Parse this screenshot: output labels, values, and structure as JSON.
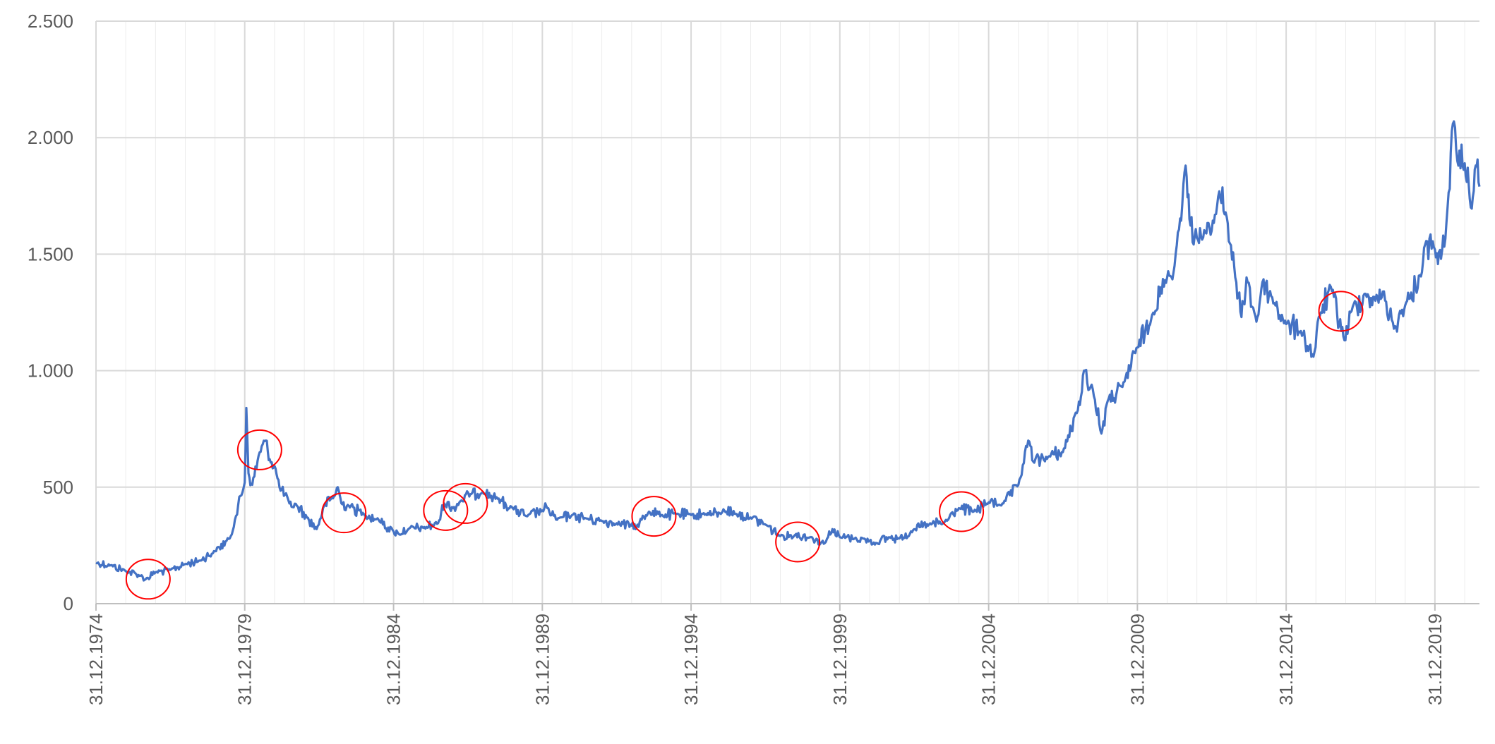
{
  "chart_data": {
    "type": "line",
    "title": "",
    "xlabel": "",
    "ylabel": "",
    "ylim": [
      0,
      2500
    ],
    "xlim": [
      "1974-12-31",
      "2021-06-30"
    ],
    "y_ticks": [
      {
        "value": 0,
        "label": "0"
      },
      {
        "value": 500,
        "label": "500"
      },
      {
        "value": 1000,
        "label": "1.000"
      },
      {
        "value": 1500,
        "label": "1.500"
      },
      {
        "value": 2000,
        "label": "2.000"
      },
      {
        "value": 2500,
        "label": "2.500"
      }
    ],
    "x_ticks": [
      {
        "date": "1974-12-31",
        "label": "31.12.1974"
      },
      {
        "date": "1979-12-31",
        "label": "31.12.1979"
      },
      {
        "date": "1984-12-31",
        "label": "31.12.1984"
      },
      {
        "date": "1989-12-31",
        "label": "31.12.1989"
      },
      {
        "date": "1994-12-31",
        "label": "31.12.1994"
      },
      {
        "date": "1999-12-31",
        "label": "31.12.1999"
      },
      {
        "date": "2004-12-31",
        "label": "31.12.2004"
      },
      {
        "date": "2009-12-31",
        "label": "31.12.2009"
      },
      {
        "date": "2014-12-31",
        "label": "31.12.2014"
      },
      {
        "date": "2019-12-31",
        "label": "31.12.2019"
      }
    ],
    "grid": {
      "major": true,
      "minor_x": true
    },
    "legend": "none",
    "series": [
      {
        "color": "#4472C4",
        "points": [
          [
            "1974-12-31",
            175
          ],
          [
            "1975-06-30",
            165
          ],
          [
            "1976-01-01",
            140
          ],
          [
            "1976-06-30",
            120
          ],
          [
            "1976-09-01",
            105
          ],
          [
            "1977-01-01",
            135
          ],
          [
            "1977-06-30",
            145
          ],
          [
            "1978-01-01",
            170
          ],
          [
            "1978-06-30",
            185
          ],
          [
            "1978-12-31",
            225
          ],
          [
            "1979-06-30",
            280
          ],
          [
            "1979-09-01",
            360
          ],
          [
            "1979-12-31",
            520
          ],
          [
            "1980-01-20",
            840
          ],
          [
            "1980-02-15",
            560
          ],
          [
            "1980-04-01",
            510
          ],
          [
            "1980-07-01",
            650
          ],
          [
            "1980-09-15",
            700
          ],
          [
            "1980-11-01",
            620
          ],
          [
            "1981-01-01",
            590
          ],
          [
            "1981-03-01",
            500
          ],
          [
            "1981-07-01",
            430
          ],
          [
            "1981-10-01",
            420
          ],
          [
            "1982-02-01",
            370
          ],
          [
            "1982-06-01",
            320
          ],
          [
            "1982-09-01",
            420
          ],
          [
            "1982-12-31",
            460
          ],
          [
            "1983-02-15",
            500
          ],
          [
            "1983-04-01",
            430
          ],
          [
            "1983-07-01",
            420
          ],
          [
            "1983-12-31",
            385
          ],
          [
            "1984-06-30",
            360
          ],
          [
            "1984-12-31",
            310
          ],
          [
            "1985-03-01",
            300
          ],
          [
            "1985-06-30",
            320
          ],
          [
            "1985-12-31",
            325
          ],
          [
            "1986-06-30",
            345
          ],
          [
            "1986-09-15",
            430
          ],
          [
            "1986-12-31",
            410
          ],
          [
            "1987-04-01",
            440
          ],
          [
            "1987-08-01",
            470
          ],
          [
            "1987-12-31",
            480
          ],
          [
            "1988-06-30",
            450
          ],
          [
            "1988-12-31",
            410
          ],
          [
            "1989-06-30",
            375
          ],
          [
            "1989-12-31",
            400
          ],
          [
            "1990-03-01",
            410
          ],
          [
            "1990-06-30",
            360
          ],
          [
            "1990-12-31",
            380
          ],
          [
            "1991-06-30",
            365
          ],
          [
            "1991-12-31",
            355
          ],
          [
            "1992-06-30",
            345
          ],
          [
            "1992-12-31",
            335
          ],
          [
            "1993-03-01",
            330
          ],
          [
            "1993-08-01",
            395
          ],
          [
            "1993-12-31",
            380
          ],
          [
            "1994-06-30",
            385
          ],
          [
            "1994-12-31",
            380
          ],
          [
            "1995-06-30",
            385
          ],
          [
            "1995-12-31",
            385
          ],
          [
            "1996-02-01",
            405
          ],
          [
            "1996-06-30",
            385
          ],
          [
            "1996-12-31",
            370
          ],
          [
            "1997-06-30",
            340
          ],
          [
            "1997-12-31",
            290
          ],
          [
            "1998-06-30",
            295
          ],
          [
            "1998-12-31",
            285
          ],
          [
            "1999-06-30",
            260
          ],
          [
            "1999-10-01",
            320
          ],
          [
            "1999-12-31",
            285
          ],
          [
            "2000-06-30",
            280
          ],
          [
            "2000-12-31",
            270
          ],
          [
            "2001-04-01",
            260
          ],
          [
            "2001-09-01",
            285
          ],
          [
            "2001-12-31",
            280
          ],
          [
            "2002-06-30",
            320
          ],
          [
            "2002-12-31",
            340
          ],
          [
            "2003-06-30",
            345
          ],
          [
            "2003-12-31",
            410
          ],
          [
            "2004-06-30",
            395
          ],
          [
            "2004-12-31",
            435
          ],
          [
            "2005-06-30",
            430
          ],
          [
            "2005-12-31",
            510
          ],
          [
            "2006-05-01",
            700
          ],
          [
            "2006-07-01",
            610
          ],
          [
            "2006-12-31",
            630
          ],
          [
            "2007-06-30",
            650
          ],
          [
            "2007-12-31",
            830
          ],
          [
            "2008-03-15",
            1000
          ],
          [
            "2008-07-01",
            920
          ],
          [
            "2008-10-15",
            730
          ],
          [
            "2008-12-31",
            870
          ],
          [
            "2009-06-30",
            930
          ],
          [
            "2009-12-31",
            1100
          ],
          [
            "2010-06-30",
            1240
          ],
          [
            "2010-12-31",
            1400
          ],
          [
            "2011-04-01",
            1450
          ],
          [
            "2011-08-15",
            1880
          ],
          [
            "2011-10-01",
            1650
          ],
          [
            "2011-12-31",
            1570
          ],
          [
            "2012-06-30",
            1600
          ],
          [
            "2012-10-01",
            1770
          ],
          [
            "2012-12-31",
            1660
          ],
          [
            "2013-04-15",
            1400
          ],
          [
            "2013-06-30",
            1230
          ],
          [
            "2013-09-01",
            1400
          ],
          [
            "2013-12-31",
            1210
          ],
          [
            "2014-03-15",
            1380
          ],
          [
            "2014-06-30",
            1320
          ],
          [
            "2014-12-31",
            1200
          ],
          [
            "2015-06-30",
            1170
          ],
          [
            "2015-12-01",
            1060
          ],
          [
            "2016-03-01",
            1250
          ],
          [
            "2016-07-01",
            1360
          ],
          [
            "2016-12-15",
            1130
          ],
          [
            "2017-03-01",
            1250
          ],
          [
            "2017-09-01",
            1330
          ],
          [
            "2017-12-31",
            1300
          ],
          [
            "2018-04-01",
            1340
          ],
          [
            "2018-08-15",
            1180
          ],
          [
            "2018-12-31",
            1280
          ],
          [
            "2019-03-01",
            1310
          ],
          [
            "2019-06-30",
            1410
          ],
          [
            "2019-09-01",
            1540
          ],
          [
            "2019-12-31",
            1520
          ],
          [
            "2020-03-15",
            1480
          ],
          [
            "2020-06-30",
            1780
          ],
          [
            "2020-08-07",
            2060
          ],
          [
            "2020-10-01",
            1900
          ],
          [
            "2020-12-31",
            1890
          ],
          [
            "2021-03-15",
            1700
          ],
          [
            "2021-05-15",
            1880
          ],
          [
            "2021-06-30",
            1790
          ]
        ]
      }
    ],
    "annotations": [
      {
        "type": "circle",
        "color": "#FF0000",
        "date": "1976-10-01",
        "value": 105
      },
      {
        "type": "circle",
        "color": "#FF0000",
        "date": "1980-07-01",
        "value": 660
      },
      {
        "type": "circle",
        "color": "#FF0000",
        "date": "1983-05-01",
        "value": 390
      },
      {
        "type": "circle",
        "color": "#FF0000",
        "date": "1986-10-01",
        "value": 400
      },
      {
        "type": "circle",
        "color": "#FF0000",
        "date": "1987-06-01",
        "value": 430
      },
      {
        "type": "circle",
        "color": "#FF0000",
        "date": "1993-10-01",
        "value": 375
      },
      {
        "type": "circle",
        "color": "#FF0000",
        "date": "1998-08-01",
        "value": 265
      },
      {
        "type": "circle",
        "color": "#FF0000",
        "date": "2004-02-01",
        "value": 395
      },
      {
        "type": "circle",
        "color": "#FF0000",
        "date": "2016-11-01",
        "value": 1255
      }
    ]
  }
}
